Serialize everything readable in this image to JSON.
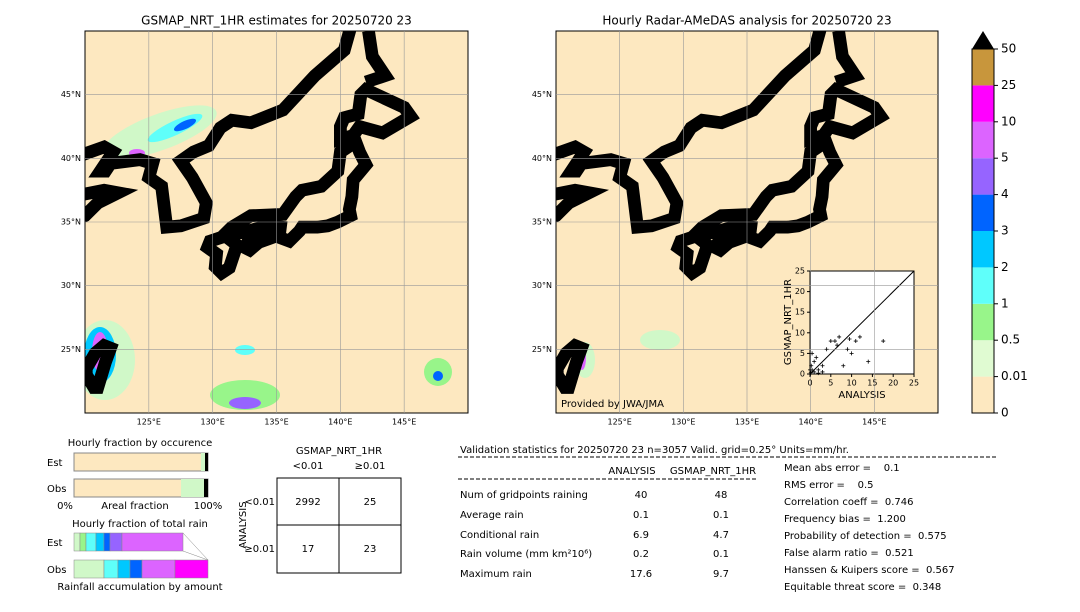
{
  "maps": [
    {
      "title": "GSMAP_NRT_1HR estimates for 20250720 23",
      "xlim": [
        120,
        150
      ],
      "ylim": [
        20,
        50
      ],
      "xticks": [
        {
          "value": 125,
          "label": "125°E"
        },
        {
          "value": 130,
          "label": "130°E"
        },
        {
          "value": 135,
          "label": "135°E"
        },
        {
          "value": 140,
          "label": "140°E"
        },
        {
          "value": 145,
          "label": "145°E"
        }
      ],
      "yticks": [
        {
          "value": 25,
          "label": "25°N"
        },
        {
          "value": 30,
          "label": "30°N"
        },
        {
          "value": 35,
          "label": "35°N"
        },
        {
          "value": 40,
          "label": "40°N"
        },
        {
          "value": 45,
          "label": "45°N"
        }
      ]
    },
    {
      "title": "Hourly Radar-AMeDAS analysis for 20250720 23",
      "xlim": [
        120,
        150
      ],
      "ylim": [
        20,
        50
      ],
      "xticks": [
        {
          "value": 125,
          "label": "125°E"
        },
        {
          "value": 130,
          "label": "130°E"
        },
        {
          "value": 135,
          "label": "135°E"
        },
        {
          "value": 140,
          "label": "140°E"
        },
        {
          "value": 145,
          "label": "145°E"
        }
      ],
      "yticks": [
        {
          "value": 25,
          "label": "25°N"
        },
        {
          "value": 30,
          "label": "30°N"
        },
        {
          "value": 35,
          "label": "35°N"
        },
        {
          "value": 40,
          "label": "40°N"
        },
        {
          "value": 45,
          "label": "45°N"
        }
      ],
      "credit": "Provided by JWA/JMA"
    }
  ],
  "colorbar": {
    "levels": [
      0,
      0.01,
      0.5,
      1,
      2,
      3,
      4,
      5,
      10,
      25,
      50
    ],
    "colors": [
      "#fde8c0",
      "#e0fbd2",
      "#98f58a",
      "#5ffffa",
      "#00c8ff",
      "#0064ff",
      "#9664ff",
      "#dc64ff",
      "#ff00ff",
      "#c8963c"
    ],
    "extend_color": "#000000"
  },
  "scatter": {
    "type": "scatter",
    "xlabel": "ANALYSIS",
    "ylabel": "GSMAP_NRT_1HR",
    "xlim": [
      0,
      25
    ],
    "ylim": [
      0,
      25
    ],
    "xticks": [
      0,
      5,
      10,
      15,
      20,
      25
    ],
    "yticks": [
      0,
      5,
      10,
      15,
      20,
      25
    ],
    "x": [
      0.2,
      0.5,
      1,
      0.3,
      1,
      0.5,
      2,
      3,
      1.5,
      4,
      5,
      6,
      7,
      8,
      9,
      10,
      11,
      12,
      14,
      17.6,
      2,
      0,
      3,
      0.1,
      6.5,
      9.5
    ],
    "values": [
      0.3,
      1,
      0.5,
      2,
      3,
      5,
      1,
      2,
      4,
      6,
      8,
      8,
      9,
      2,
      6,
      5,
      8,
      9,
      3,
      8,
      0.2,
      1,
      0.5,
      0,
      7,
      8.5
    ]
  },
  "fraction": {
    "occurrence_title": "Hourly fraction by occurence",
    "rows": [
      "Est",
      "Obs"
    ],
    "axis_left": "0%",
    "axis_label": "Areal fraction",
    "axis_right": "100%",
    "total_title": "Hourly fraction of total rain",
    "total_rows": [
      "Est",
      "Obs"
    ],
    "total_caption": "Rainfall accumulation by amount"
  },
  "contingency": {
    "title": "GSMAP_NRT_1HR",
    "col_labels": [
      "<0.01",
      "≥0.01"
    ],
    "row_axis": "ANALYSIS",
    "row_labels": [
      "<0.01",
      "≥0.01"
    ],
    "cells": [
      [
        2992,
        25
      ],
      [
        17,
        23
      ]
    ]
  },
  "validation": {
    "title": "Validation statistics for 20250720 23  n=3057 Valid. grid=0.25° Units=mm/hr.",
    "columns": [
      "ANALYSIS",
      "GSMAP_NRT_1HR"
    ],
    "rows": [
      {
        "label": "Num of gridpoints raining",
        "values": [
          "40",
          "48"
        ]
      },
      {
        "label": "Average rain",
        "values": [
          "0.1",
          "0.1"
        ]
      },
      {
        "label": "Conditional rain",
        "values": [
          "6.9",
          "4.7"
        ]
      },
      {
        "label": "Rain volume (mm km²10⁶)",
        "values": [
          "0.2",
          "0.1"
        ]
      },
      {
        "label": "Maximum rain",
        "values": [
          "17.6",
          "9.7"
        ]
      }
    ],
    "scores": [
      "Mean abs error =    0.1",
      "RMS error =    0.5",
      "Correlation coeff =  0.746",
      "Frequency bias =  1.200",
      "Probability of detection =  0.575",
      "False alarm ratio =  0.521",
      "Hanssen & Kuipers score =  0.567",
      "Equitable threat score =  0.348"
    ]
  }
}
